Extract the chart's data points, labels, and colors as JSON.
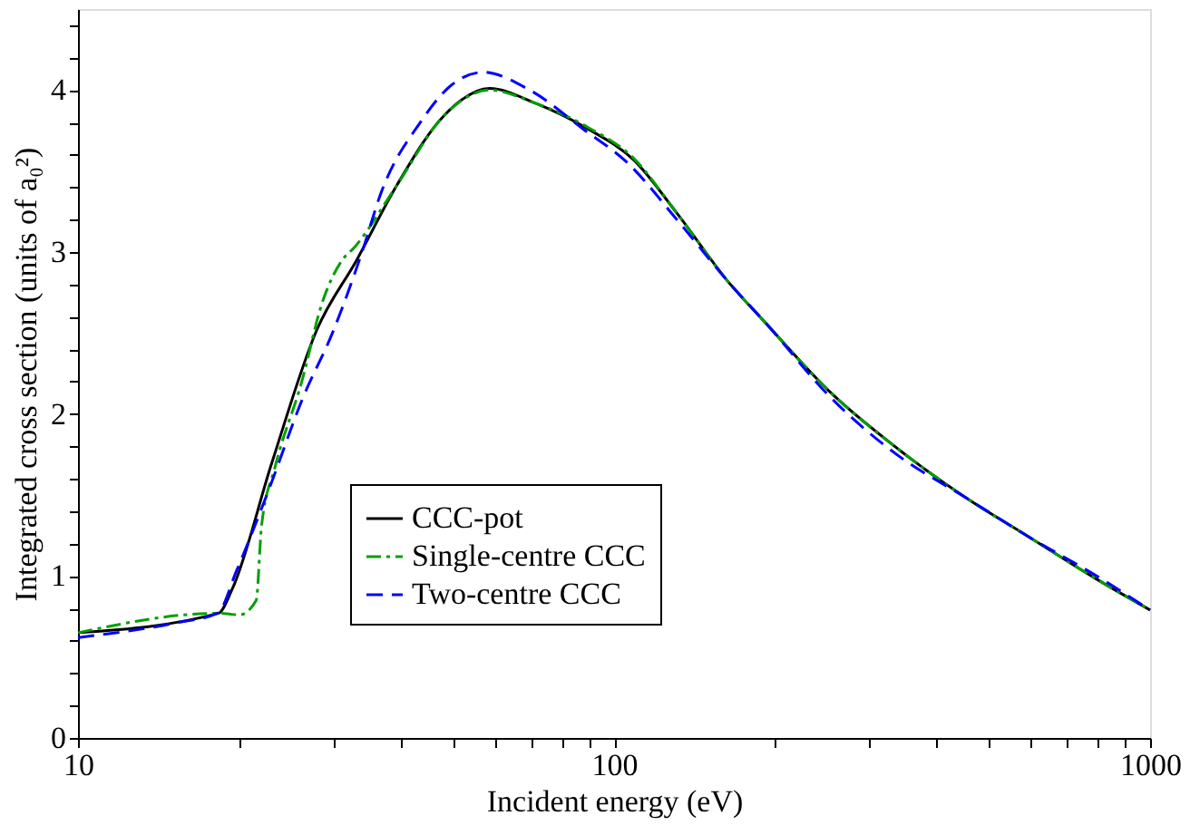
{
  "chart_data": {
    "type": "line",
    "xlabel": "Incident energy (eV)",
    "ylabel": "Integrated cross section (units of a₀²)",
    "log": "x",
    "xlim": [
      10,
      1000
    ],
    "ylim": [
      0,
      4.5
    ],
    "xticks": [
      10,
      {
        "value": 20,
        "label": null
      },
      {
        "value": 30,
        "label": null
      },
      {
        "value": 40,
        "label": null
      },
      {
        "value": 50,
        "label": null
      },
      {
        "value": 60,
        "label": null
      },
      {
        "value": 70,
        "label": null
      },
      {
        "value": 80,
        "label": null
      },
      {
        "value": 90,
        "label": null
      },
      100,
      {
        "value": 200,
        "label": null
      },
      {
        "value": 300,
        "label": null
      },
      {
        "value": 400,
        "label": null
      },
      {
        "value": 500,
        "label": null
      },
      {
        "value": 600,
        "label": null
      },
      {
        "value": 700,
        "label": null
      },
      {
        "value": 800,
        "label": null
      },
      {
        "value": 900,
        "label": null
      },
      1000
    ],
    "yticks": [
      0,
      {
        "value": 0.2,
        "label": null
      },
      {
        "value": 0.4,
        "label": null
      },
      {
        "value": 0.6,
        "label": null
      },
      {
        "value": 0.8,
        "label": null
      },
      1,
      {
        "value": 1.2,
        "label": null
      },
      {
        "value": 1.4,
        "label": null
      },
      {
        "value": 1.6,
        "label": null
      },
      {
        "value": 1.8,
        "label": null
      },
      2,
      {
        "value": 2.2,
        "label": null
      },
      {
        "value": 2.4,
        "label": null
      },
      {
        "value": 2.6,
        "label": null
      },
      {
        "value": 2.8,
        "label": null
      },
      3,
      {
        "value": 3.2,
        "label": null
      },
      {
        "value": 3.4,
        "label": null
      },
      {
        "value": 3.6,
        "label": null
      },
      {
        "value": 3.8,
        "label": null
      },
      4,
      {
        "value": 4.2,
        "label": null
      },
      {
        "value": 4.4,
        "label": null
      }
    ],
    "grid": false,
    "legend": "bottom",
    "marker": "none",
    "series": [
      {
        "name": "CCC-pot",
        "color": "#000000",
        "line_style": "solid",
        "x": [
          10,
          18.3,
          19.4,
          23,
          27.9,
          33.1,
          39.3,
          48.1,
          58.6,
          71.2,
          89.4,
          108.7,
          131,
          162,
          192,
          254,
          340,
          450,
          595,
          795,
          1000
        ],
        "values": [
          0.65,
          0.77,
          0.92,
          1.7,
          2.52,
          2.95,
          3.41,
          3.84,
          4.01,
          3.92,
          3.76,
          3.57,
          3.24,
          2.83,
          2.56,
          2.13,
          1.78,
          1.49,
          1.24,
          0.98,
          0.79
        ]
      },
      {
        "name": "Single-centre CCC",
        "color": "#00a000",
        "line_style": "dashdot",
        "x": [
          10,
          18.3,
          20,
          21.5,
          22,
          23.3,
          26.2,
          28.5,
          31.1,
          32.8,
          39.3,
          48.1,
          58.6,
          71.2,
          89.4,
          108.7,
          131,
          162,
          192,
          254,
          340,
          450,
          595,
          795,
          1000
        ],
        "values": [
          0.65,
          0.77,
          0.76,
          0.85,
          1.31,
          1.67,
          2.21,
          2.68,
          2.95,
          3.03,
          3.41,
          3.84,
          4.0,
          3.92,
          3.77,
          3.58,
          3.24,
          2.83,
          2.56,
          2.13,
          1.78,
          1.49,
          1.24,
          0.98,
          0.79
        ]
      },
      {
        "name": "Two-centre CCC",
        "color": "#0000ff",
        "line_style": "dashed",
        "x": [
          10,
          15.2,
          18.2,
          19.8,
          22.8,
          26.2,
          30,
          33.8,
          36.8,
          43.5,
          49.7,
          57,
          69.6,
          87.5,
          106,
          131,
          162,
          192,
          254,
          340,
          450,
          595,
          795,
          1000
        ],
        "values": [
          0.62,
          0.71,
          0.77,
          1.04,
          1.55,
          2.09,
          2.52,
          2.99,
          3.37,
          3.8,
          4.03,
          4.11,
          4.0,
          3.76,
          3.55,
          3.2,
          2.83,
          2.56,
          2.1,
          1.74,
          1.49,
          1.24,
          1.0,
          0.79
        ]
      }
    ]
  }
}
